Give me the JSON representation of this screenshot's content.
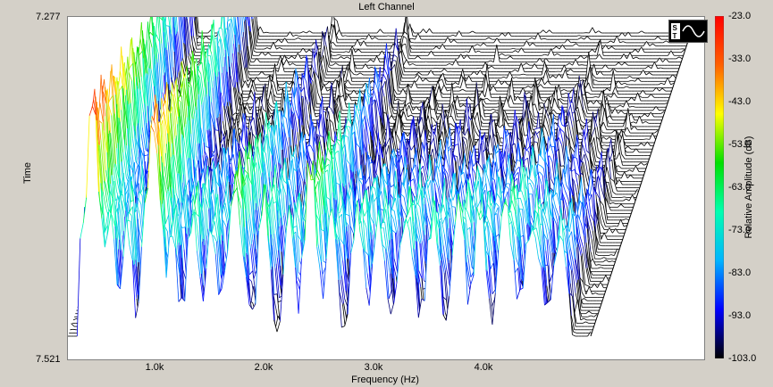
{
  "chart_data": {
    "type": "waterfall",
    "title": "Left Channel",
    "xlabel": "Frequency (Hz)",
    "ylabel": "Time",
    "y_ticks": [
      "7.277",
      "7.521"
    ],
    "x_ticks": [
      {
        "label": "1.0k",
        "value": 1000
      },
      {
        "label": "2.0k",
        "value": 2000
      },
      {
        "label": "3.0k",
        "value": 3000
      },
      {
        "label": "4.0k",
        "value": 4000
      }
    ],
    "xlim": [
      200,
      5150
    ],
    "ylim_time": [
      7.277,
      7.521
    ],
    "colorbar": {
      "title": "Relative Amplitude (dB)",
      "ticks": [
        "-23.0",
        "-33.0",
        "-43.0",
        "-53.0",
        "-63.0",
        "-73.0",
        "-83.0",
        "-93.0",
        "-103.0"
      ],
      "range_db": [
        -103,
        -23
      ],
      "colors": [
        "#000000",
        "#0000ff",
        "#00b4ff",
        "#00ffb0",
        "#00e000",
        "#ffff00",
        "#ff6000",
        "#ff0000"
      ]
    },
    "peaks": [
      {
        "freq": 430,
        "db": -23
      },
      {
        "freq": 600,
        "db": -60
      },
      {
        "freq": 760,
        "db": -60
      },
      {
        "freq": 1000,
        "db": -28
      },
      {
        "freq": 1180,
        "db": -63
      },
      {
        "freq": 1380,
        "db": -58
      },
      {
        "freq": 1560,
        "db": -63
      },
      {
        "freq": 1780,
        "db": -48
      },
      {
        "freq": 2050,
        "db": -57
      },
      {
        "freq": 2300,
        "db": -63
      },
      {
        "freq": 2500,
        "db": -48
      },
      {
        "freq": 2700,
        "db": -63
      },
      {
        "freq": 2950,
        "db": -60
      },
      {
        "freq": 3150,
        "db": -63
      },
      {
        "freq": 3400,
        "db": -60
      },
      {
        "freq": 3650,
        "db": -63
      },
      {
        "freq": 3900,
        "db": -60
      },
      {
        "freq": 4100,
        "db": -63
      },
      {
        "freq": 4350,
        "db": -58
      },
      {
        "freq": 4600,
        "db": -63
      },
      {
        "freq": 4850,
        "db": -68
      }
    ]
  }
}
